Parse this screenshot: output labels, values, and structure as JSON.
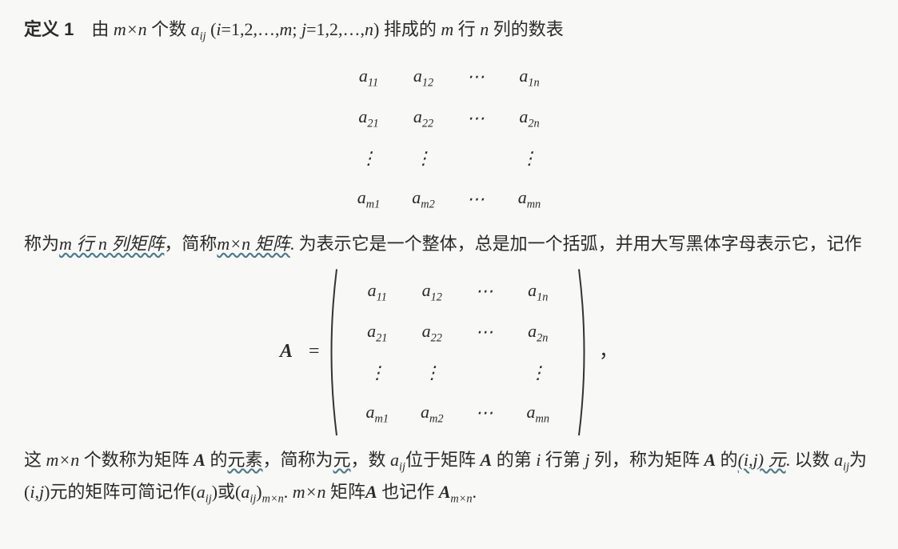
{
  "def_label": "定义 1",
  "p1_a": "　由 ",
  "mxn": "m×n",
  "p1_b": " 个数 ",
  "aij": "a",
  "aij_sub": "ij",
  "p1_c": " (",
  "i_eq": "i",
  "p1_d": "=1,2,…,",
  "m": "m",
  "p1_e": "; ",
  "j_eq": "j",
  "p1_f": "=1,2,…,",
  "n": "n",
  "p1_g": ") 排成的 ",
  "p1_h": " 行 ",
  "p1_i": " 列的数表",
  "matrix1": {
    "rows": [
      [
        "a",
        "11",
        "a",
        "12",
        "⋯",
        "a",
        "1n"
      ],
      [
        "a",
        "21",
        "a",
        "22",
        "⋯",
        "a",
        "2n"
      ],
      [
        "⋮",
        "",
        "⋮",
        "",
        "",
        "⋮",
        ""
      ],
      [
        "a",
        "m1",
        "a",
        "m2",
        "⋯",
        "a",
        "mn"
      ]
    ]
  },
  "p2_a": "称为",
  "u1": "m 行 n 列矩阵",
  "p2_b": "，简称",
  "u2": "m×n 矩阵",
  "p2_c": ". 为表示它是一个整体，总是加一个括弧，并用大写黑体字母表示它，记作",
  "A_sym": "A",
  "equals": " = ",
  "comma": "，",
  "p3_a": "这 ",
  "p3_b": " 个数称为矩阵 ",
  "p3_c": " 的",
  "u3": "元素",
  "p3_d": "，简称为",
  "u4": "元",
  "p3_e": "，数 ",
  "p3_f": "位于矩阵 ",
  "p3_g": " 的第 ",
  "p3_h": " 行第 ",
  "p3_i": " 列，称为矩阵 ",
  "p3_j": " 的",
  "u5": "(i,j) 元",
  "p3_k": ". 以数 ",
  "p3_l": "为(",
  "p3_m": ",",
  "p3_n": ")元的矩阵可简记作(",
  "p3_o": ")或(",
  "p3_p": ")",
  "mxn_sub": "m×n",
  "period": ".",
  "p4_a": " 矩阵",
  "p4_b": " 也记作 ",
  "A_mxn_sub": "m×n"
}
